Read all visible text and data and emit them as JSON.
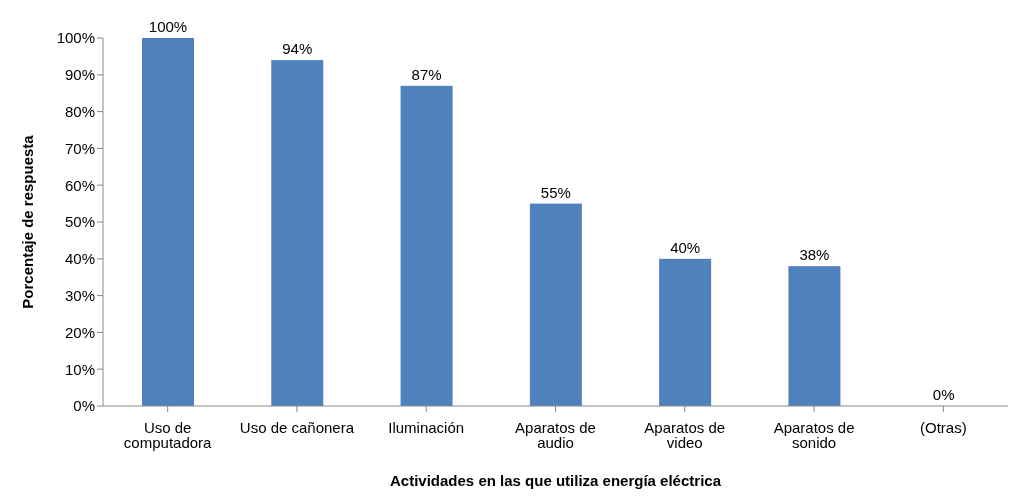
{
  "chart_data": {
    "type": "bar",
    "xlabel": "Actividades en las que utiliza energía eléctrica",
    "ylabel": "Porcentaje de respuesta",
    "categories": [
      "Uso de computadora",
      "Uso de cañonera",
      "Iluminación",
      "Aparatos de audio",
      "Aparatos de video",
      "Aparatos de sonido",
      "(Otras)"
    ],
    "values": [
      100,
      94,
      87,
      55,
      40,
      38,
      0
    ],
    "value_labels": [
      "100%",
      "94%",
      "87%",
      "55%",
      "40%",
      "38%",
      "0%"
    ],
    "color": "#4f81bd",
    "ylim": [
      0,
      100
    ],
    "yticks": [
      {
        "value": 0,
        "label": "0%"
      },
      {
        "value": 10,
        "label": "10%"
      },
      {
        "value": 20,
        "label": "20%"
      },
      {
        "value": 30,
        "label": "30%"
      },
      {
        "value": 40,
        "label": "40%"
      },
      {
        "value": 50,
        "label": "50%"
      },
      {
        "value": 60,
        "label": "60%"
      },
      {
        "value": 70,
        "label": "70%"
      },
      {
        "value": 80,
        "label": "80%"
      },
      {
        "value": 90,
        "label": "90%"
      },
      {
        "value": 100,
        "label": "100%"
      }
    ],
    "grid": false,
    "legend": false
  }
}
